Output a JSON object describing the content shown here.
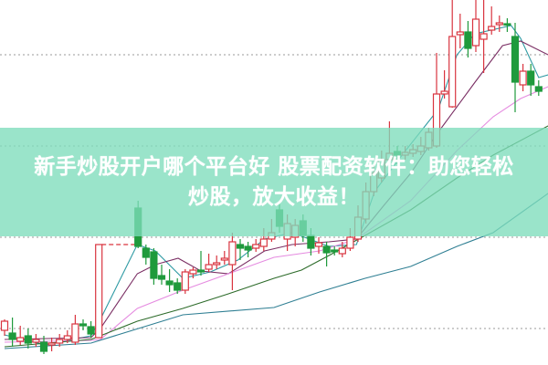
{
  "banner": {
    "line1": "新手炒股开户哪个平台好 股票配资软件：助您轻松",
    "line2": "炒股，放大收益！"
  },
  "colors": {
    "up": "#d9343f",
    "down": "#1f9a3c",
    "banner": "#96e3c8",
    "grid": "#9a9a9a",
    "ma_lines": [
      "#2e9aa3",
      "#7a2e63",
      "#e58be0",
      "#2d6b2a",
      "#2f7f93"
    ]
  },
  "chart_data": {
    "type": "candlestick",
    "title": "",
    "xlabel": "",
    "ylabel": "",
    "ylim": [
      0,
      40
    ],
    "grid": "horizontal dotted",
    "gridlines": [
      4,
      14,
      24,
      34
    ],
    "suspension_dashed_level": 13.2,
    "candles": [
      [
        3.8,
        5.0,
        3.2,
        4.8
      ],
      [
        3.5,
        5.2,
        2.0,
        2.8
      ],
      [
        2.6,
        4.3,
        2.2,
        3.0
      ],
      [
        3.2,
        4.0,
        1.8,
        2.4
      ],
      [
        2.5,
        3.4,
        2.0,
        2.8
      ],
      [
        2.5,
        3.2,
        1.2,
        1.5
      ],
      [
        2.2,
        3.0,
        1.5,
        2.4
      ],
      [
        2.4,
        3.4,
        2.0,
        2.8
      ],
      [
        2.8,
        3.8,
        2.4,
        3.2
      ],
      [
        2.5,
        5.5,
        2.2,
        4.5
      ],
      [
        4.5,
        5.0,
        3.8,
        4.3
      ],
      [
        4.2,
        4.8,
        3.0,
        3.4
      ],
      [
        3.0,
        13.2,
        3.0,
        13.2
      ],
      null,
      null,
      null,
      null,
      [
        17.2,
        18.0,
        12.8,
        13.0
      ],
      [
        12.8,
        13.2,
        11.0,
        11.8
      ],
      [
        12.4,
        12.8,
        8.8,
        9.5
      ],
      [
        9.8,
        11.0,
        8.8,
        9.4
      ],
      [
        9.2,
        10.5,
        8.0,
        8.8
      ],
      [
        9.0,
        9.5,
        7.8,
        8.2
      ],
      [
        8.2,
        10.5,
        7.8,
        10.2
      ],
      [
        10.0,
        10.7,
        9.5,
        10.4
      ],
      [
        10.4,
        12.5,
        9.8,
        10.2
      ],
      [
        10.5,
        12.2,
        10.2,
        11.0
      ],
      [
        11.0,
        12.0,
        10.5,
        11.2
      ],
      [
        11.5,
        12.5,
        11.0,
        11.7
      ],
      [
        11.0,
        14.5,
        8.2,
        13.5
      ],
      [
        13.2,
        13.8,
        11.5,
        12.8
      ],
      [
        13.0,
        13.5,
        11.8,
        12.6
      ],
      [
        12.8,
        13.8,
        12.4,
        13.2
      ],
      [
        13.0,
        15.0,
        12.5,
        13.8
      ],
      [
        13.8,
        16.0,
        13.5,
        14.5
      ],
      [
        17.0,
        18.0,
        14.5,
        15.2
      ],
      [
        13.8,
        16.5,
        12.5,
        15.5
      ],
      [
        14.0,
        16.0,
        13.0,
        15.3
      ],
      [
        15.8,
        16.5,
        13.5,
        14.2
      ],
      [
        14.2,
        15.0,
        12.0,
        12.8
      ],
      [
        13.0,
        14.0,
        12.2,
        13.4
      ],
      [
        13.0,
        13.5,
        10.8,
        12.3
      ],
      [
        12.6,
        13.0,
        12.0,
        12.4
      ],
      [
        12.2,
        13.5,
        11.8,
        12.8
      ],
      [
        12.8,
        15.0,
        12.5,
        14.0
      ],
      [
        13.8,
        17.5,
        13.5,
        16.2
      ],
      [
        16.0,
        20.0,
        15.5,
        19.0
      ],
      [
        19.0,
        22.0,
        18.5,
        21.0
      ],
      [
        20.5,
        23.5,
        20.0,
        22.5
      ],
      [
        22.5,
        26.7,
        22.0,
        23.2
      ],
      [
        23.4,
        24.0,
        22.0,
        23.0
      ],
      [
        23.0,
        24.0,
        22.5,
        23.3
      ],
      [
        23.2,
        24.2,
        22.8,
        23.6
      ],
      [
        23.4,
        25.0,
        23.0,
        24.0
      ],
      [
        23.8,
        26.0,
        23.5,
        25.5
      ],
      [
        24.0,
        34.2,
        23.8,
        29.7
      ],
      [
        29.7,
        32.3,
        29.2,
        30.0
      ],
      [
        28.3,
        40.0,
        28.2,
        36.0
      ],
      [
        36.2,
        38.5,
        34.7,
        36.5
      ],
      [
        36.5,
        37.7,
        33.7,
        34.7
      ],
      [
        35.0,
        40.0,
        34.3,
        37.9
      ],
      [
        35.7,
        40.0,
        32.0,
        36.3
      ],
      [
        36.7,
        39.3,
        36.2,
        37.1
      ],
      [
        37.3,
        38.3,
        36.5,
        37.5
      ],
      [
        37.4,
        38.0,
        36.5,
        37.3
      ],
      [
        36.0,
        37.5,
        27.7,
        31.0
      ],
      [
        30.7,
        33.0,
        30.0,
        32.2
      ],
      [
        32.2,
        33.0,
        29.5,
        30.7
      ],
      [
        30.5,
        31.2,
        29.5,
        30.0
      ]
    ],
    "moving_averages": [
      {
        "points": [
          [
            0,
            3.3
          ],
          [
            5.2,
            2.2
          ],
          [
            11,
            3.2
          ],
          [
            12.2,
            5.0
          ],
          [
            16.9,
            13.2
          ],
          [
            19.2,
            12.5
          ],
          [
            22.7,
            9.5
          ],
          [
            26.2,
            10.2
          ],
          [
            29.7,
            11.5
          ],
          [
            33.1,
            13.8
          ],
          [
            36.6,
            14.5
          ],
          [
            41.3,
            13.0
          ],
          [
            44.8,
            13.2
          ],
          [
            47.1,
            19.0
          ],
          [
            50.6,
            23.0
          ],
          [
            55.2,
            28.0
          ],
          [
            57.6,
            34.0
          ],
          [
            59.9,
            36.3
          ],
          [
            64.5,
            37.2
          ],
          [
            65.7,
            35.8
          ],
          [
            68,
            31.5
          ],
          [
            69.2,
            31.8
          ]
        ]
      },
      {
        "points": [
          [
            0,
            2.8
          ],
          [
            11,
            3.0
          ],
          [
            12.2,
            4.0
          ],
          [
            16.9,
            10.0
          ],
          [
            19.2,
            11.0
          ],
          [
            22.1,
            11.7
          ],
          [
            25,
            10.3
          ],
          [
            28.5,
            10.0
          ],
          [
            33.1,
            12.5
          ],
          [
            36.6,
            13.2
          ],
          [
            41.3,
            13.5
          ],
          [
            44.8,
            13.8
          ],
          [
            48.3,
            17.5
          ],
          [
            51.7,
            21.0
          ],
          [
            55.2,
            25.5
          ],
          [
            59.9,
            31.0
          ],
          [
            63.4,
            35.0
          ],
          [
            65.7,
            35.5
          ],
          [
            69.2,
            34.0
          ]
        ]
      },
      {
        "points": [
          [
            0,
            2.5
          ],
          [
            11,
            2.7
          ],
          [
            12.2,
            2.8
          ],
          [
            16.9,
            6.2
          ],
          [
            22.7,
            8.2
          ],
          [
            28.5,
            10.0
          ],
          [
            34.3,
            11.8
          ],
          [
            40.1,
            12.5
          ],
          [
            44.8,
            13.8
          ],
          [
            51.7,
            18.0
          ],
          [
            57.6,
            23.5
          ],
          [
            62.2,
            27.2
          ],
          [
            65.7,
            29.2
          ],
          [
            69.2,
            30.5
          ]
        ]
      },
      {
        "points": [
          [
            0,
            2.0
          ],
          [
            11,
            2.8
          ],
          [
            12.2,
            3.2
          ],
          [
            16.9,
            4.8
          ],
          [
            22.7,
            6.2
          ],
          [
            28.5,
            7.8
          ],
          [
            34.3,
            9.5
          ],
          [
            37.8,
            10.4
          ],
          [
            41.3,
            12.0
          ],
          [
            45.9,
            14.2
          ],
          [
            51.7,
            17.0
          ],
          [
            57.6,
            20.5
          ],
          [
            62.2,
            23.0
          ],
          [
            69.2,
            26.2
          ]
        ]
      },
      {
        "points": [
          [
            0,
            1.8
          ],
          [
            11,
            2.4
          ],
          [
            22.7,
            5.5
          ],
          [
            34.3,
            6.3
          ],
          [
            40.1,
            8.0
          ],
          [
            45.9,
            9.5
          ],
          [
            51.7,
            10.8
          ],
          [
            57.6,
            13.0
          ],
          [
            62.2,
            14.5
          ],
          [
            69.2,
            18.8
          ]
        ]
      }
    ]
  }
}
